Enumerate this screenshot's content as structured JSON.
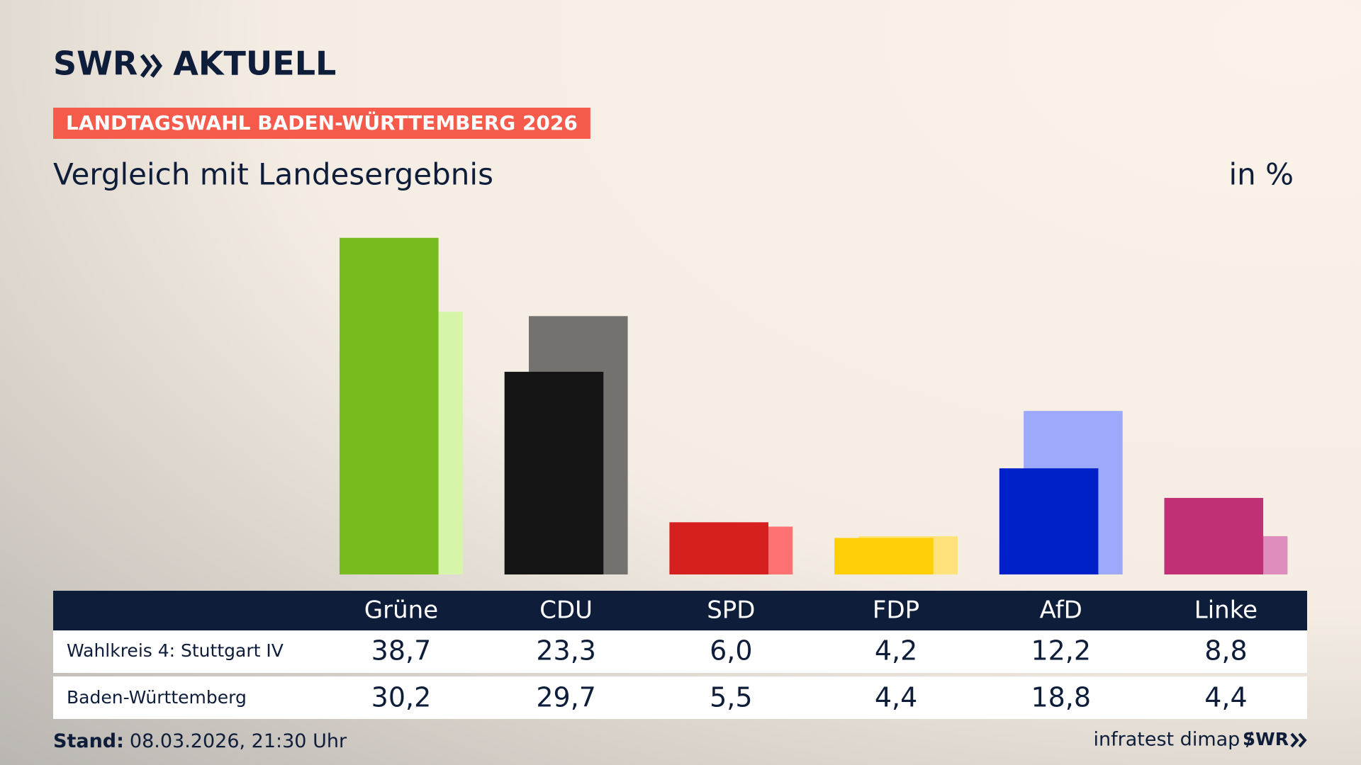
{
  "chart_data": {
    "type": "bar",
    "brand": "SWR",
    "brand_product": "AKTUELL",
    "kicker": "LANDTAGSWAHL BADEN-WÜRTTEMBERG 2026",
    "title": "Vergleich mit Landesergebnis",
    "unit": "in %",
    "categories": [
      "Grüne",
      "CDU",
      "SPD",
      "FDP",
      "AfD",
      "Linke"
    ],
    "series": [
      {
        "name": "Wahlkreis 4: Stuttgart IV",
        "colors": [
          "#78bb1e",
          "#141414",
          "#d62020",
          "#ffcf08",
          "#0020c8",
          "#bf3174"
        ],
        "values": [
          38.7,
          23.3,
          6.0,
          4.2,
          12.2,
          8.8
        ],
        "value_labels": [
          "38,7",
          "23,3",
          "6,0",
          "4,2",
          "12,2",
          "8,8"
        ]
      },
      {
        "name": "Baden-Württemberg",
        "colors": [
          "#d7f5a9",
          "#74726f",
          "#ff7272",
          "#ffe27a",
          "#9daafc",
          "#df8dbd"
        ],
        "values": [
          30.2,
          29.7,
          5.5,
          4.4,
          18.8,
          4.4
        ],
        "value_labels": [
          "30,2",
          "29,7",
          "5,5",
          "4,4",
          "18,8",
          "4,4"
        ]
      }
    ],
    "stand_label": "Stand:",
    "stand": "08.03.2026, 21:30 Uhr",
    "source": "infratest dimap /",
    "source_brand": "SWR"
  }
}
